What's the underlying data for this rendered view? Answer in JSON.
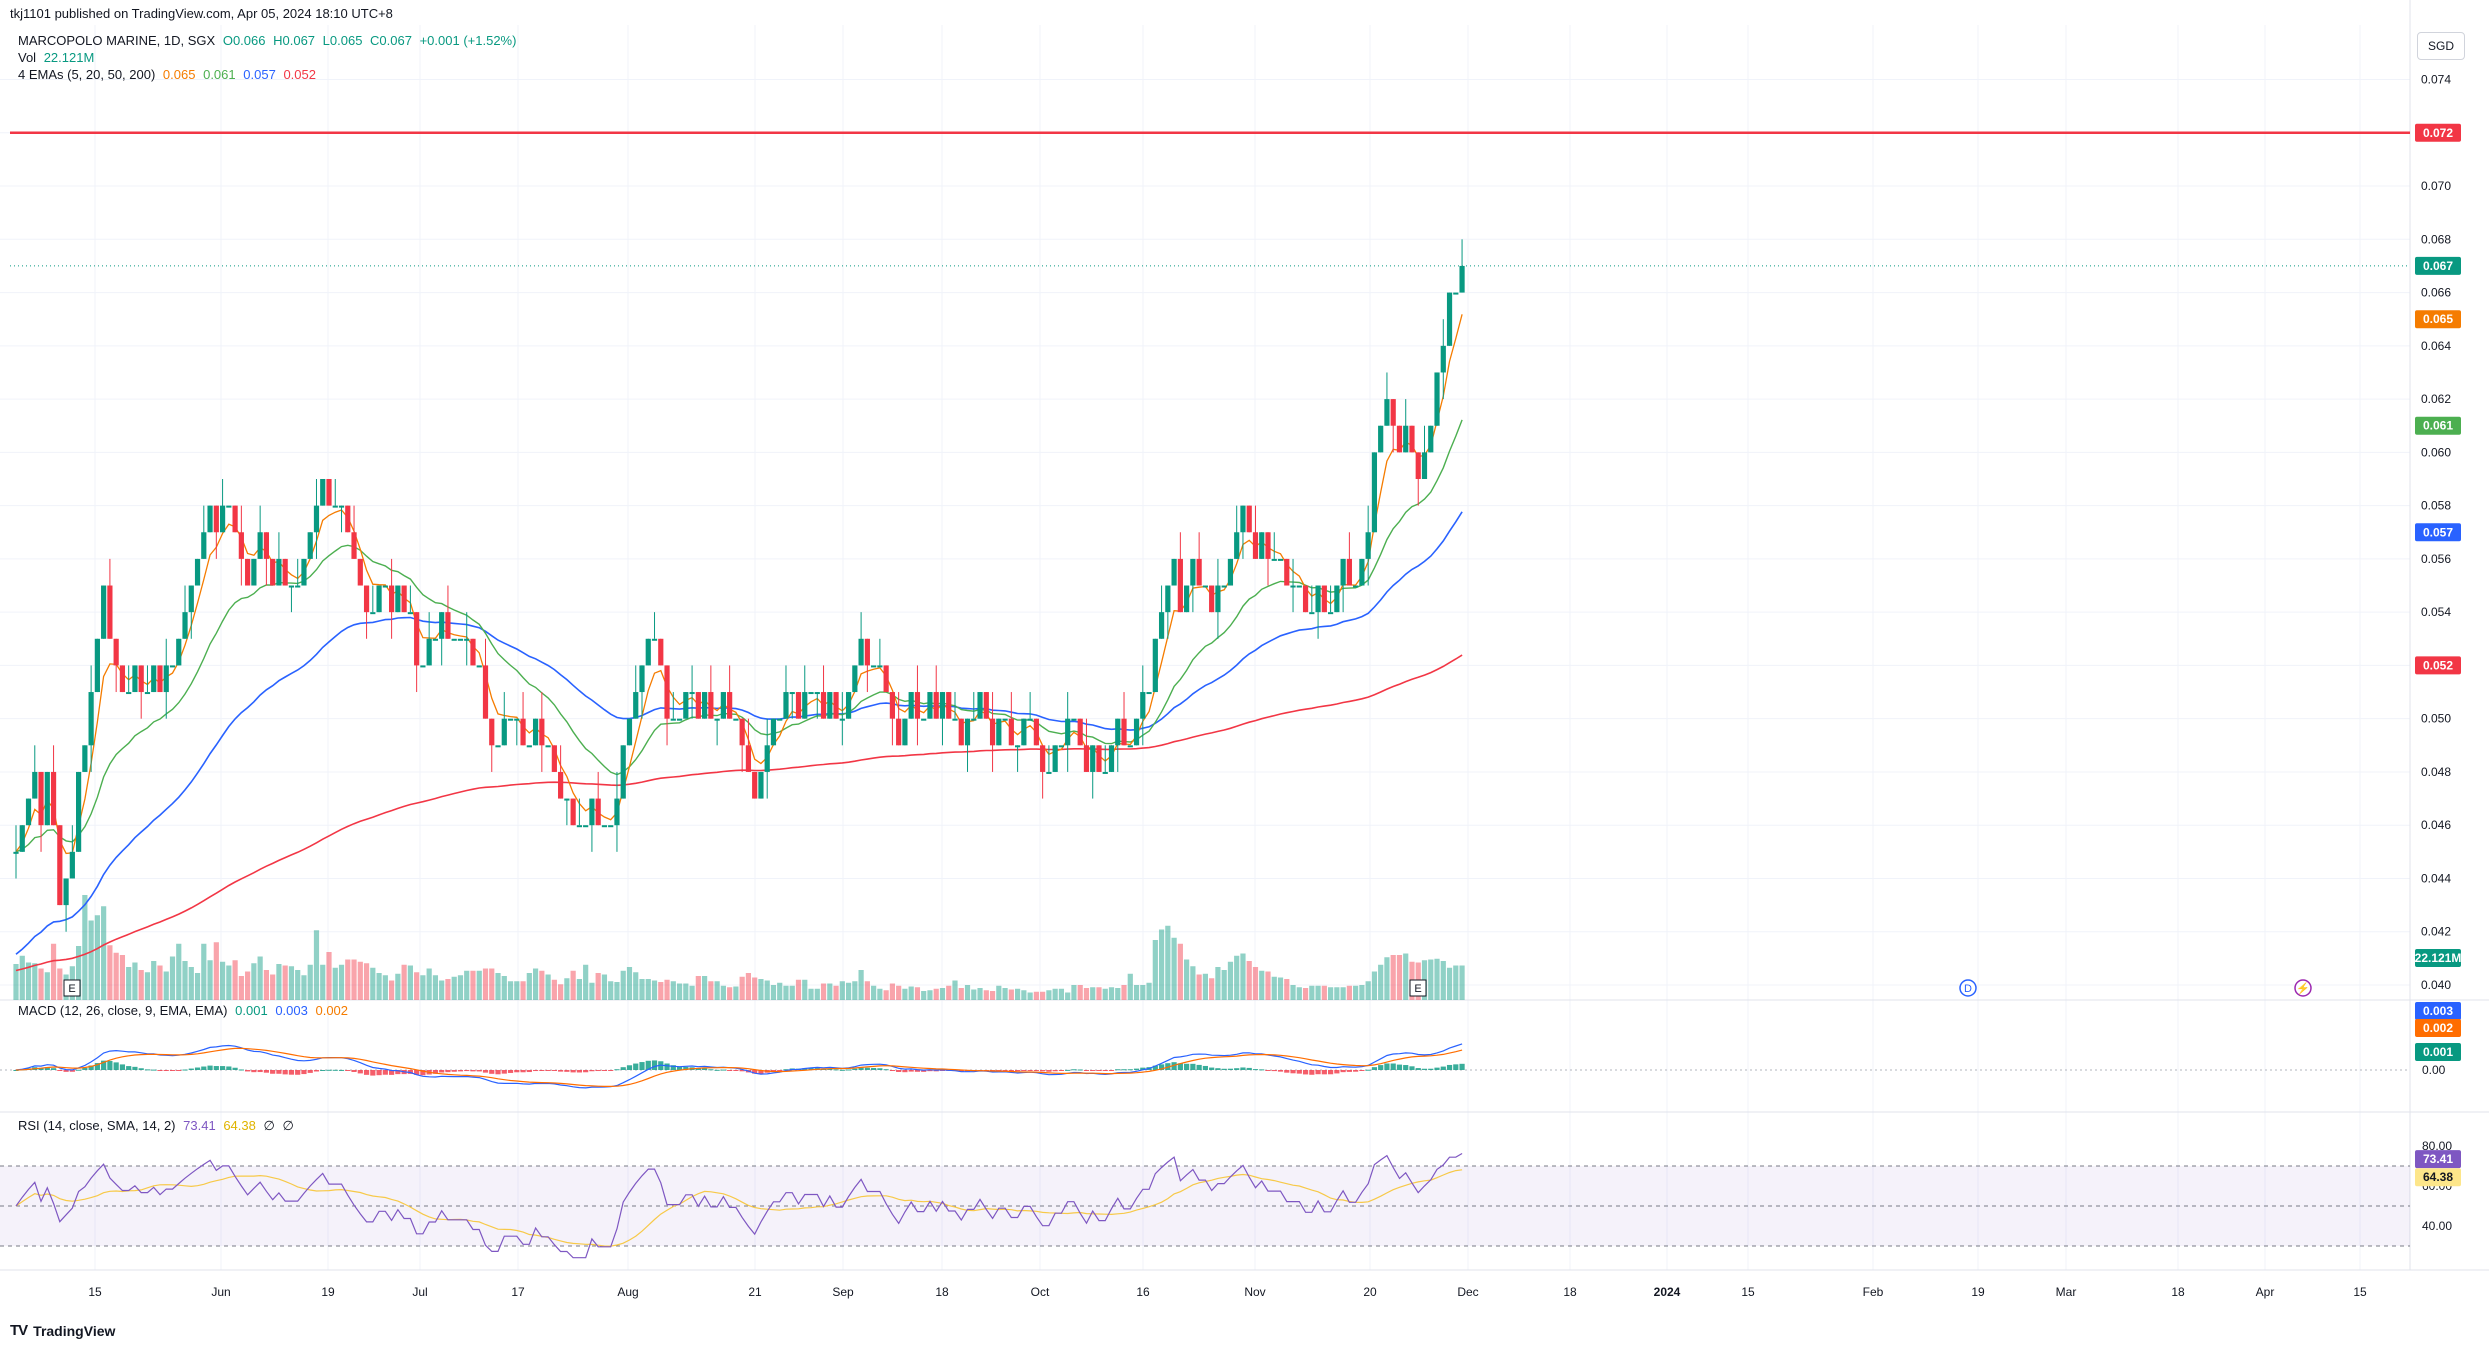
{
  "publisher": "tkj1101 published on TradingView.com, Apr 05, 2024 18:10 UTC+8",
  "header": {
    "symbol": "MARCOPOLO MARINE, 1D, SGX",
    "open": "O0.066",
    "high": "H0.067",
    "low": "L0.065",
    "close": "C0.067",
    "change": "+0.001 (+1.52%)",
    "vol_label": "Vol",
    "vol_value": "22.121M",
    "ema_label": "4 EMAs (5, 20, 50, 200)",
    "ema_values": [
      "0.065",
      "0.061",
      "0.057",
      "0.052"
    ]
  },
  "currency": "SGD",
  "brand": "TradingView",
  "colors": {
    "up": "#089981",
    "down": "#f23645",
    "ema5": "#f57c00",
    "ema20": "#4caf50",
    "ema50": "#2962ff",
    "ema200": "#f23645",
    "macd": "#2962ff",
    "signal": "#ff6d00",
    "rsi": "#7e57c2",
    "rsi_ma": "#f7c948",
    "resistance": "#f23645"
  },
  "chart_data": [
    {
      "type": "candlestick",
      "title": "MARCOPOLO MARINE, 1D, SGX",
      "price_axis": {
        "ticks": [
          "0.074",
          "0.072",
          "0.070",
          "0.068",
          "0.066",
          "0.064",
          "0.062",
          "0.060",
          "0.058",
          "0.056",
          "0.054",
          "0.052",
          "0.050",
          "0.048",
          "0.046",
          "0.044",
          "0.042",
          "0.040"
        ],
        "ylim": [
          0.0393,
          0.075
        ]
      },
      "time_axis": {
        "ticks": [
          "15",
          "Jun",
          "19",
          "Jul",
          "17",
          "Aug",
          "21",
          "Sep",
          "18",
          "Oct",
          "16",
          "Nov",
          "20",
          "Dec",
          "18",
          "2024",
          "15",
          "Feb",
          "19",
          "Mar",
          "18",
          "Apr",
          "15"
        ],
        "range": [
          "2023-05-02",
          "2024-04-19"
        ]
      },
      "resistance_line": 0.072,
      "last_price_line": 0.067,
      "price_labels": {
        "resistance": "0.072",
        "last": "0.067",
        "ema5": "0.065",
        "ema20": "0.061",
        "ema50": "0.057",
        "ema200": "0.052",
        "volume": "22.121M"
      },
      "closes": [
        0.045,
        0.046,
        0.047,
        0.048,
        0.046,
        0.048,
        0.046,
        0.043,
        0.044,
        0.045,
        0.048,
        0.049,
        0.051,
        0.053,
        0.055,
        0.053,
        0.052,
        0.051,
        0.051,
        0.052,
        0.051,
        0.051,
        0.052,
        0.051,
        0.052,
        0.052,
        0.053,
        0.054,
        0.055,
        0.056,
        0.057,
        0.058,
        0.057,
        0.058,
        0.058,
        0.057,
        0.056,
        0.055,
        0.056,
        0.057,
        0.056,
        0.055,
        0.056,
        0.055,
        0.055,
        0.055,
        0.056,
        0.057,
        0.058,
        0.059,
        0.058,
        0.058,
        0.058,
        0.057,
        0.056,
        0.055,
        0.054,
        0.054,
        0.055,
        0.055,
        0.054,
        0.055,
        0.054,
        0.054,
        0.052,
        0.052,
        0.053,
        0.053,
        0.054,
        0.053,
        0.053,
        0.053,
        0.053,
        0.052,
        0.052,
        0.05,
        0.049,
        0.049,
        0.05,
        0.05,
        0.05,
        0.049,
        0.049,
        0.05,
        0.049,
        0.049,
        0.048,
        0.047,
        0.047,
        0.046,
        0.046,
        0.046,
        0.047,
        0.046,
        0.046,
        0.046,
        0.047,
        0.049,
        0.05,
        0.051,
        0.052,
        0.053,
        0.053,
        0.052,
        0.05,
        0.05,
        0.05,
        0.051,
        0.051,
        0.05,
        0.051,
        0.05,
        0.05,
        0.051,
        0.05,
        0.05,
        0.049,
        0.048,
        0.047,
        0.048,
        0.049,
        0.05,
        0.05,
        0.051,
        0.051,
        0.05,
        0.051,
        0.051,
        0.051,
        0.05,
        0.051,
        0.05,
        0.05,
        0.051,
        0.052,
        0.053,
        0.052,
        0.052,
        0.052,
        0.051,
        0.05,
        0.049,
        0.05,
        0.051,
        0.05,
        0.05,
        0.051,
        0.05,
        0.051,
        0.05,
        0.05,
        0.049,
        0.05,
        0.05,
        0.051,
        0.05,
        0.049,
        0.05,
        0.05,
        0.049,
        0.049,
        0.05,
        0.05,
        0.049,
        0.048,
        0.048,
        0.049,
        0.049,
        0.05,
        0.05,
        0.049,
        0.048,
        0.049,
        0.048,
        0.048,
        0.049,
        0.05,
        0.049,
        0.049,
        0.05,
        0.051,
        0.051,
        0.053,
        0.054,
        0.055,
        0.056,
        0.054,
        0.055,
        0.056,
        0.055,
        0.055,
        0.054,
        0.055,
        0.055,
        0.056,
        0.057,
        0.058,
        0.057,
        0.056,
        0.057,
        0.056,
        0.056,
        0.056,
        0.055,
        0.055,
        0.055,
        0.054,
        0.054,
        0.055,
        0.054,
        0.054,
        0.055,
        0.056,
        0.055,
        0.055,
        0.056,
        0.057,
        0.06,
        0.061,
        0.062,
        0.061,
        0.06,
        0.061,
        0.06,
        0.059,
        0.06,
        0.061,
        0.063,
        0.064,
        0.066,
        0.066,
        0.067
      ],
      "series": [
        {
          "name": "Vol",
          "values": [
            4.8,
            5.9,
            5.0,
            4.9,
            4.2,
            3.7,
            7.5,
            4.2,
            3.4,
            4.5,
            7.2,
            14.0,
            10.6,
            11.3,
            12.5,
            7.3,
            6.3,
            6.0,
            4.4,
            5.0,
            4.0,
            3.7,
            5.2,
            4.6,
            3.8,
            5.8,
            7.5,
            5.2,
            4.4,
            3.6,
            7.5,
            5.3,
            7.7,
            5.1,
            4.6,
            5.3,
            3.2,
            3.8,
            4.9,
            5.8,
            4.0,
            3.4,
            4.8,
            4.6,
            4.5,
            4.0,
            3.3,
            4.7,
            9.3,
            4.7,
            6.4,
            4.3,
            4.7,
            5.4,
            5.4,
            5.1,
            4.9,
            4.3,
            3.6,
            3.3,
            2.6,
            3.5,
            4.7,
            4.6,
            3.7,
            3.3,
            4.2,
            3.3,
            2.6,
            2.8,
            3.1,
            3.3,
            3.9,
            3.9,
            3.9,
            4.2,
            4.2,
            3.6,
            3.2,
            2.5,
            2.5,
            2.5,
            3.6,
            4.2,
            3.9,
            3.4,
            2.7,
            2.1,
            2.9,
            3.9,
            2.8,
            4.7,
            2.3,
            3.6,
            3.4,
            2.5,
            2.4,
            3.9,
            4.4,
            3.7,
            2.8,
            2.8,
            2.6,
            2.4,
            2.7,
            2.5,
            2.2,
            2.2,
            1.9,
            3.2,
            3.2,
            2.5,
            2.5,
            1.9,
            1.7,
            1.8,
            3.1,
            3.6,
            3.0,
            2.8,
            2.6,
            2.0,
            2.3,
            1.9,
            1.9,
            2.7,
            2.7,
            1.5,
            1.5,
            2.2,
            2.2,
            1.9,
            2.5,
            2.3,
            2.5,
            4.0,
            2.5,
            1.9,
            1.5,
            1.3,
            2.2,
            1.9,
            1.5,
            1.8,
            1.7,
            1.2,
            1.3,
            1.5,
            1.6,
            1.9,
            2.6,
            1.6,
            2.0,
            1.4,
            1.6,
            1.3,
            1.2,
            1.9,
            1.6,
            1.4,
            1.5,
            1.3,
            1.0,
            1.1,
            1.1,
            1.3,
            1.5,
            1.5,
            1.0,
            2.0,
            2.0,
            1.6,
            1.7,
            1.7,
            1.5,
            1.7,
            1.6,
            2.0,
            3.5,
            2.0,
            2.0,
            2.3,
            8.0,
            9.4,
            9.9,
            8.3,
            7.5,
            5.4,
            4.5,
            3.4,
            3.5,
            2.9,
            4.4,
            4.0,
            5.1,
            5.9,
            6.2,
            5.2,
            4.4,
            3.9,
            3.8,
            3.1,
            3.0,
            2.8,
            2.0,
            1.7,
            1.6,
            1.9,
            1.9,
            1.9,
            1.7,
            1.7,
            1.7,
            1.9,
            1.9,
            2.0,
            2.5,
            3.8,
            4.7,
            5.7,
            6.0,
            6.0,
            6.2,
            5.1,
            5.0,
            5.3,
            5.4,
            5.5,
            5.2,
            4.3,
            4.6,
            4.6,
            4.2
          ]
        },
        {
          "name": "0.065",
          "values": []
        },
        {
          "name": "0.061",
          "values": []
        },
        {
          "name": "0.057",
          "values": []
        },
        {
          "name": "0.052",
          "values": []
        }
      ]
    },
    {
      "type": "line",
      "title": "MACD (12, 26, close, 9, EMA, EMA)",
      "legend_values": [
        "0.001",
        "0.003",
        "0.002"
      ],
      "axis_ticks": [
        "0.00"
      ],
      "price_labels": [
        "0.003",
        "0.002",
        "0.001"
      ]
    },
    {
      "type": "line",
      "title": "RSI (14, close, SMA, 14, 2)",
      "legend_values": [
        "73.41",
        "64.38"
      ],
      "legend_extra": [
        "∅",
        "∅"
      ],
      "axis_ticks": [
        "80.00",
        "60.00",
        "40.00"
      ],
      "bands": [
        70,
        50,
        30
      ],
      "ylim": [
        24,
        82
      ],
      "price_labels": [
        "73.41",
        "64.38"
      ]
    }
  ]
}
